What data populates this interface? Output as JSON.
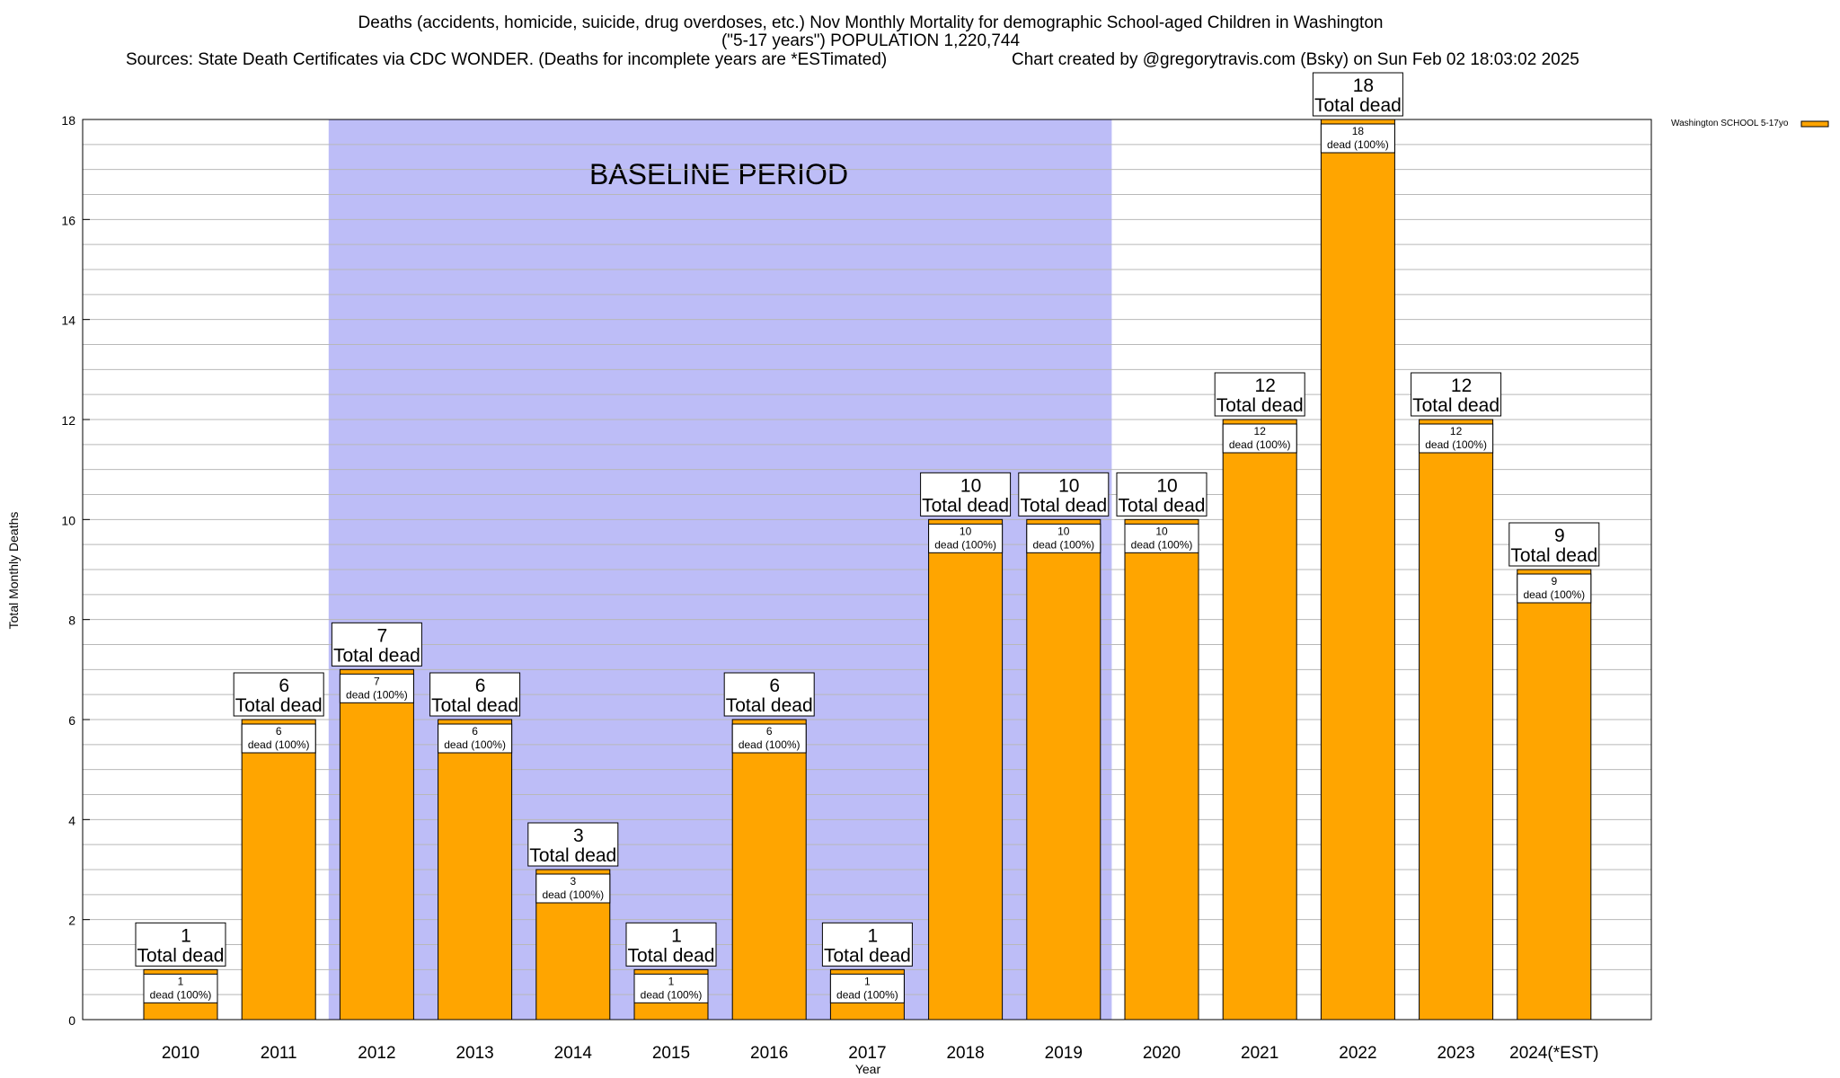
{
  "chart_data": {
    "type": "bar",
    "title_lines": [
      "Deaths (accidents, homicide, suicide, drug overdoses, etc.) Nov Monthly Mortality for demographic School-aged Children in Washington",
      "(\"5-17 years\") POPULATION 1,220,744"
    ],
    "sources": "Sources: State Death Certificates via CDC WONDER. (Deaths for incomplete years are *ESTimated)",
    "credit": "Chart created by @gregorytravis.com (Bsky) on Sun Feb 02 18:03:02 2025",
    "xlabel": "Year",
    "ylabel": "Total Monthly Deaths",
    "ylim": [
      0,
      18
    ],
    "yticks": [
      0,
      2,
      4,
      6,
      8,
      10,
      12,
      14,
      16,
      18
    ],
    "grid": true,
    "categories": [
      "2010",
      "2011",
      "2012",
      "2013",
      "2014",
      "2015",
      "2016",
      "2017",
      "2018",
      "2019",
      "2020",
      "2021",
      "2022",
      "2023",
      "2024(*EST)"
    ],
    "values": [
      1,
      6,
      7,
      6,
      3,
      1,
      6,
      1,
      10,
      10,
      10,
      12,
      18,
      12,
      9
    ],
    "series": [
      {
        "name": "Washington SCHOOL 5-17yo",
        "values": [
          1,
          6,
          7,
          6,
          3,
          1,
          6,
          1,
          10,
          10,
          10,
          12,
          18,
          12,
          9
        ]
      }
    ],
    "total_label_suffix": "Total dead",
    "inner_label_suffix": "dead (100%)",
    "baseline": {
      "label": "BASELINE PERIOD",
      "from": "2012",
      "to": "2019"
    },
    "legend_position": "top-right",
    "colors": {
      "bar": "#ffa500",
      "baseline": "#bdbdf7",
      "grid": "#b8b8b8"
    }
  }
}
